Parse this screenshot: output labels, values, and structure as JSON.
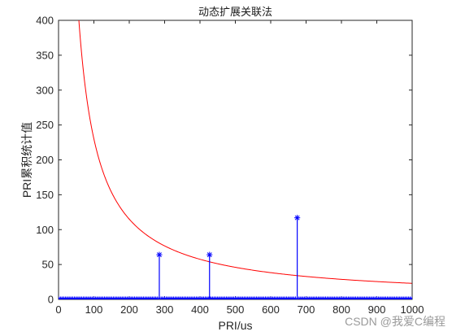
{
  "chart_data": {
    "type": "line",
    "title": "动态扩展关联法",
    "xlabel": "PRI/us",
    "ylabel": "PRI累积统计值",
    "xlim": [
      0,
      1000
    ],
    "ylim": [
      0,
      400
    ],
    "xticks": [
      0,
      100,
      200,
      300,
      400,
      500,
      600,
      700,
      800,
      900,
      1000
    ],
    "yticks": [
      0,
      50,
      100,
      150,
      200,
      250,
      300,
      350,
      400
    ],
    "grid": false,
    "series": [
      {
        "kind": "threshold_curve",
        "color": "#ff0000",
        "formula": "y = 23000 / x",
        "x_start": 57,
        "x_end": 1000
      },
      {
        "kind": "stem",
        "color": "#0000ff",
        "marker": "*",
        "baseline_x_start": 0,
        "baseline_x_end": 1000,
        "baseline_step": 5,
        "baseline_value": 0,
        "peaks": [
          {
            "x": 285,
            "y": 64
          },
          {
            "x": 427,
            "y": 64
          },
          {
            "x": 675,
            "y": 117
          }
        ]
      }
    ]
  },
  "watermark": "CSDN @我爱C编程"
}
